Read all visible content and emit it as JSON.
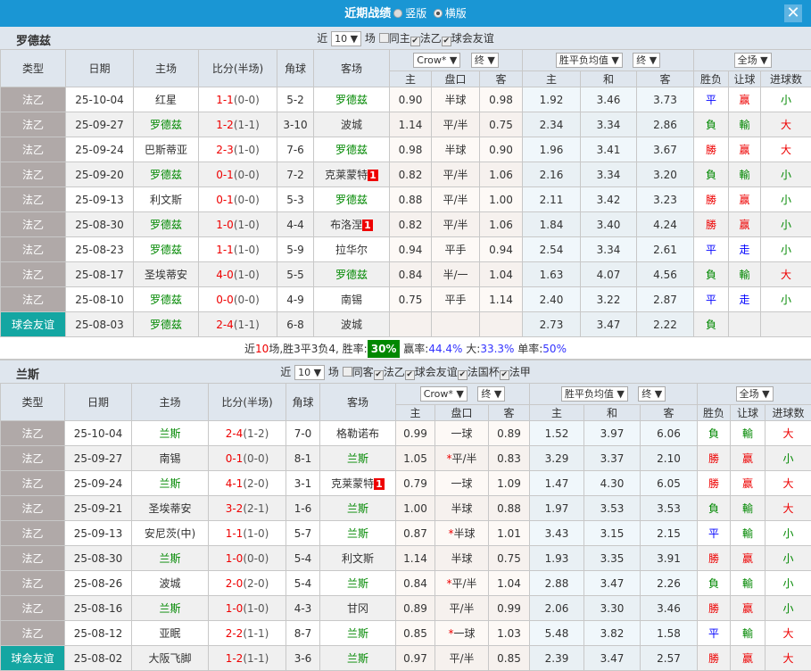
{
  "title": "近期战绩",
  "view_options": [
    "竖版",
    "横版"
  ],
  "selected_view": "横版",
  "colors": {
    "titlebar": "#1a96d4",
    "league_type": "#b0a9a8",
    "friendly_type": "#14a6a2",
    "win": "#e00000",
    "draw": "#0000ff",
    "loss": "#008000"
  },
  "headers": {
    "type": "类型",
    "date": "日期",
    "home": "主场",
    "score": "比分(半场)",
    "corner": "角球",
    "away": "客场",
    "h": "主",
    "line": "盘口",
    "a": "客",
    "d": "和",
    "wl": "胜负",
    "hc": "让球",
    "ou": "进球数"
  },
  "sections": [
    {
      "team": "罗德兹",
      "near": "近",
      "count": "10",
      "games": "场",
      "filters": [
        {
          "label": "同主",
          "checked": false
        },
        {
          "label": "法乙",
          "checked": true
        },
        {
          "label": "球会友谊",
          "checked": true
        }
      ],
      "odds_company": "Crow*",
      "odds_stage1": "终",
      "avg_label": "胜平负均值",
      "odds_stage2": "终",
      "scope": "全场",
      "rows": [
        [
          "法乙",
          "25-10-04",
          "红星",
          "1-1",
          "(0-0)",
          "5-2",
          "罗德兹",
          "",
          "0.90",
          "半球",
          "0.98",
          "1.92",
          "3.46",
          "3.73",
          "平",
          "赢",
          "小"
        ],
        [
          "法乙",
          "25-09-27",
          "罗德兹",
          "1-2",
          "(1-1)",
          "3-10",
          "波城",
          "",
          "1.14",
          "平/半",
          "0.75",
          "2.34",
          "3.34",
          "2.86",
          "負",
          "輸",
          "大"
        ],
        [
          "法乙",
          "25-09-24",
          "巴斯蒂亚",
          "2-3",
          "(1-0)",
          "7-6",
          "罗德兹",
          "",
          "0.98",
          "半球",
          "0.90",
          "1.96",
          "3.41",
          "3.67",
          "勝",
          "赢",
          "大"
        ],
        [
          "法乙",
          "25-09-20",
          "罗德兹",
          "0-1",
          "(0-0)",
          "7-2",
          "克莱蒙特",
          "1",
          "0.82",
          "平/半",
          "1.06",
          "2.16",
          "3.34",
          "3.20",
          "負",
          "輸",
          "小"
        ],
        [
          "法乙",
          "25-09-13",
          "利文斯",
          "0-1",
          "(0-0)",
          "5-3",
          "罗德兹",
          "",
          "0.88",
          "平/半",
          "1.00",
          "2.11",
          "3.42",
          "3.23",
          "勝",
          "赢",
          "小"
        ],
        [
          "法乙",
          "25-08-30",
          "罗德兹",
          "1-0",
          "(1-0)",
          "4-4",
          "布洛涅",
          "1",
          "0.82",
          "平/半",
          "1.06",
          "1.84",
          "3.40",
          "4.24",
          "勝",
          "赢",
          "小"
        ],
        [
          "法乙",
          "25-08-23",
          "罗德兹",
          "1-1",
          "(1-0)",
          "5-9",
          "拉华尔",
          "",
          "0.94",
          "平手",
          "0.94",
          "2.54",
          "3.34",
          "2.61",
          "平",
          "走",
          "小"
        ],
        [
          "法乙",
          "25-08-17",
          "圣埃蒂安",
          "4-0",
          "(1-0)",
          "5-5",
          "罗德兹",
          "",
          "0.84",
          "半/一",
          "1.04",
          "1.63",
          "4.07",
          "4.56",
          "負",
          "輸",
          "大"
        ],
        [
          "法乙",
          "25-08-10",
          "罗德兹",
          "0-0",
          "(0-0)",
          "4-9",
          "南锡",
          "",
          "0.75",
          "平手",
          "1.14",
          "2.40",
          "3.22",
          "2.87",
          "平",
          "走",
          "小"
        ],
        [
          "球会友谊",
          "25-08-03",
          "罗德兹",
          "2-4",
          "(1-1)",
          "6-8",
          "波城",
          "",
          "",
          "",
          "",
          "2.73",
          "3.47",
          "2.22",
          "負",
          "",
          ""
        ]
      ],
      "summary": {
        "p1": "近",
        "n": "10",
        "p2": "场,胜3平3负4, 胜率:",
        "win_rate": "30%",
        "p3": "赢率:",
        "hc_rate": "44.4%",
        "p4": " 大:",
        "over_rate": "33.3%",
        "p5": " 单率:",
        "odd_rate": "50%"
      }
    },
    {
      "team": "兰斯",
      "near": "近",
      "count": "10",
      "games": "场",
      "filters": [
        {
          "label": "同客",
          "checked": false
        },
        {
          "label": "法乙",
          "checked": true
        },
        {
          "label": "球会友谊",
          "checked": true
        },
        {
          "label": "法国杯",
          "checked": true
        },
        {
          "label": "法甲",
          "checked": true
        }
      ],
      "odds_company": "Crow*",
      "odds_stage1": "终",
      "avg_label": "胜平负均值",
      "odds_stage2": "终",
      "scope": "全场",
      "rows": [
        [
          "法乙",
          "25-10-04",
          "兰斯",
          "2-4",
          "(1-2)",
          "7-0",
          "格勒诺布",
          "",
          "0.99",
          "一球",
          "0.89",
          "1.52",
          "3.97",
          "6.06",
          "負",
          "輸",
          "大"
        ],
        [
          "法乙",
          "25-09-27",
          "南锡",
          "0-1",
          "(0-0)",
          "8-1",
          "兰斯",
          "",
          "1.05",
          "*平/半",
          "0.83",
          "3.29",
          "3.37",
          "2.10",
          "勝",
          "赢",
          "小"
        ],
        [
          "法乙",
          "25-09-24",
          "兰斯",
          "4-1",
          "(2-0)",
          "3-1",
          "克莱蒙特",
          "1",
          "0.79",
          "一球",
          "1.09",
          "1.47",
          "4.30",
          "6.05",
          "勝",
          "赢",
          "大"
        ],
        [
          "法乙",
          "25-09-21",
          "圣埃蒂安",
          "3-2",
          "(2-1)",
          "1-6",
          "兰斯",
          "",
          "1.00",
          "半球",
          "0.88",
          "1.97",
          "3.53",
          "3.53",
          "負",
          "輸",
          "大"
        ],
        [
          "法乙",
          "25-09-13",
          "安尼茨(中)",
          "1-1",
          "(1-0)",
          "5-7",
          "兰斯",
          "",
          "0.87",
          "*半球",
          "1.01",
          "3.43",
          "3.15",
          "2.15",
          "平",
          "輸",
          "小"
        ],
        [
          "法乙",
          "25-08-30",
          "兰斯",
          "1-0",
          "(0-0)",
          "5-4",
          "利文斯",
          "",
          "1.14",
          "半球",
          "0.75",
          "1.93",
          "3.35",
          "3.91",
          "勝",
          "赢",
          "小"
        ],
        [
          "法乙",
          "25-08-26",
          "波城",
          "2-0",
          "(2-0)",
          "5-4",
          "兰斯",
          "",
          "0.84",
          "*平/半",
          "1.04",
          "2.88",
          "3.47",
          "2.26",
          "負",
          "輸",
          "小"
        ],
        [
          "法乙",
          "25-08-16",
          "兰斯",
          "1-0",
          "(1-0)",
          "4-3",
          "甘冈",
          "",
          "0.89",
          "平/半",
          "0.99",
          "2.06",
          "3.30",
          "3.46",
          "勝",
          "赢",
          "小"
        ],
        [
          "法乙",
          "25-08-12",
          "亚眠",
          "2-2",
          "(1-1)",
          "8-7",
          "兰斯",
          "",
          "0.85",
          "*一球",
          "1.03",
          "5.48",
          "3.82",
          "1.58",
          "平",
          "輸",
          "大"
        ],
        [
          "球会友谊",
          "25-08-02",
          "大阪飞脚",
          "1-2",
          "(1-1)",
          "3-6",
          "兰斯",
          "",
          "0.97",
          "平/半",
          "0.85",
          "2.39",
          "3.47",
          "2.57",
          "勝",
          "赢",
          "大"
        ]
      ]
    }
  ]
}
